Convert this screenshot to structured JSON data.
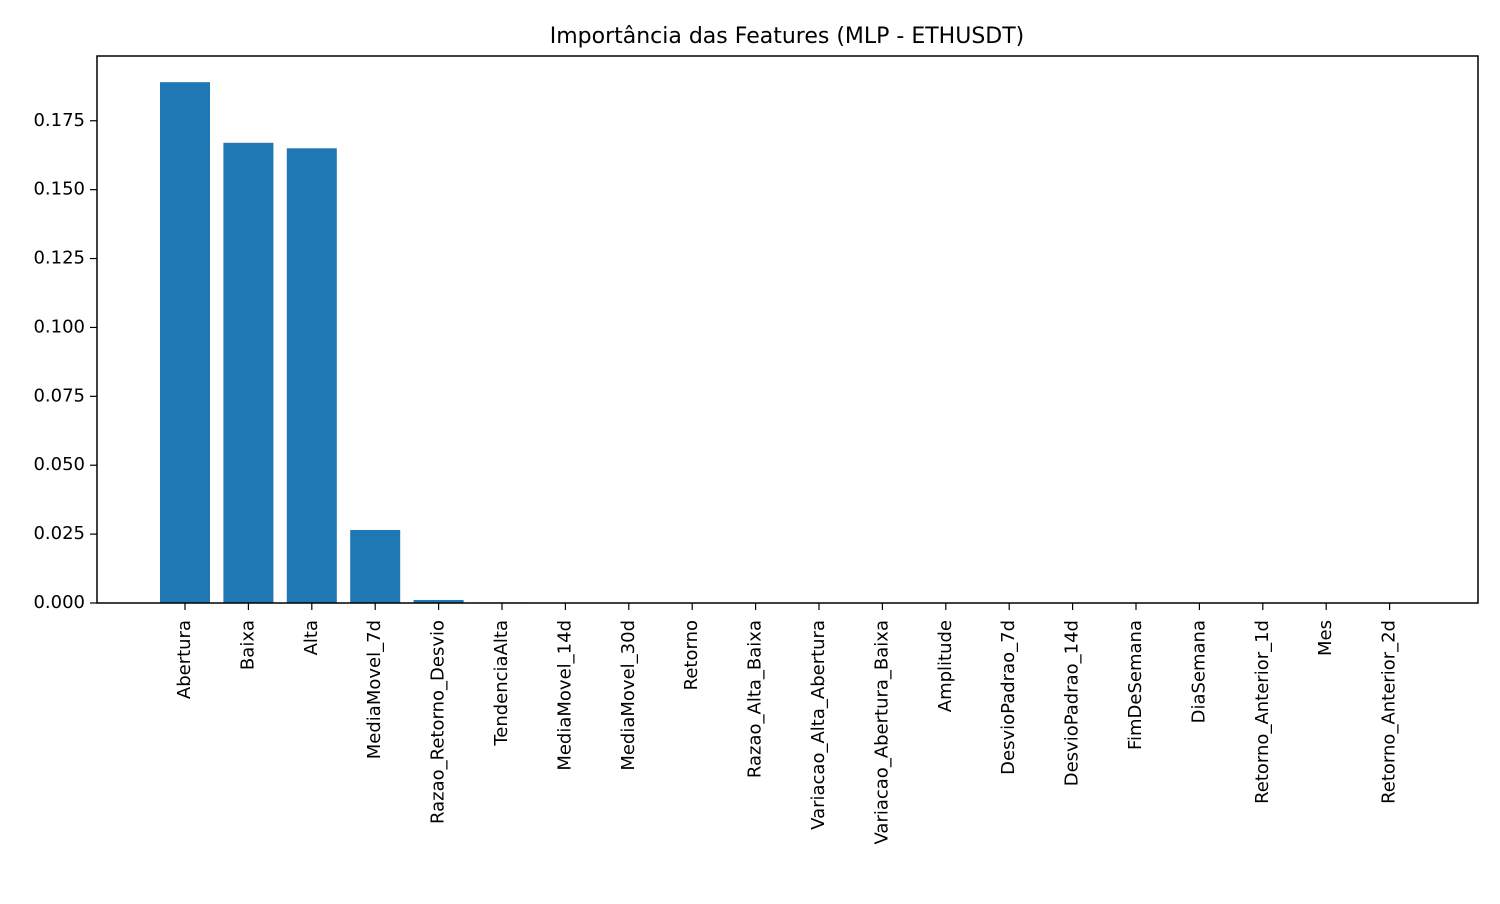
{
  "chart_data": {
    "type": "bar",
    "title": "Importância das Features (MLP - ETHUSDT)",
    "xlabel": "",
    "ylabel": "",
    "categories": [
      "Abertura",
      "Baixa",
      "Alta",
      "MediaMovel_7d",
      "Razao_Retorno_Desvio",
      "TendenciaAlta",
      "MediaMovel_14d",
      "MediaMovel_30d",
      "Retorno",
      "Razao_Alta_Baixa",
      "Variacao_Alta_Abertura",
      "Variacao_Abertura_Baixa",
      "Amplitude",
      "DesvioPadrao_7d",
      "DesvioPadrao_14d",
      "FimDeSemana",
      "DiaSemana",
      "Retorno_Anterior_1d",
      "Mes",
      "Retorno_Anterior_2d"
    ],
    "values": [
      0.189,
      0.167,
      0.165,
      0.0265,
      0.0011,
      0.0002,
      0.0001,
      0.0001,
      0.0,
      0.0,
      0.0,
      0.0,
      0.0,
      0.0,
      0.0,
      0.0,
      0.0,
      0.0,
      0.0,
      0.0
    ],
    "ylim": [
      0,
      0.1985
    ],
    "yticks": [
      "0.000",
      "0.025",
      "0.050",
      "0.075",
      "0.100",
      "0.125",
      "0.150",
      "0.175"
    ],
    "bar_color": "#1f77b4",
    "grid": false,
    "legend": "none"
  }
}
